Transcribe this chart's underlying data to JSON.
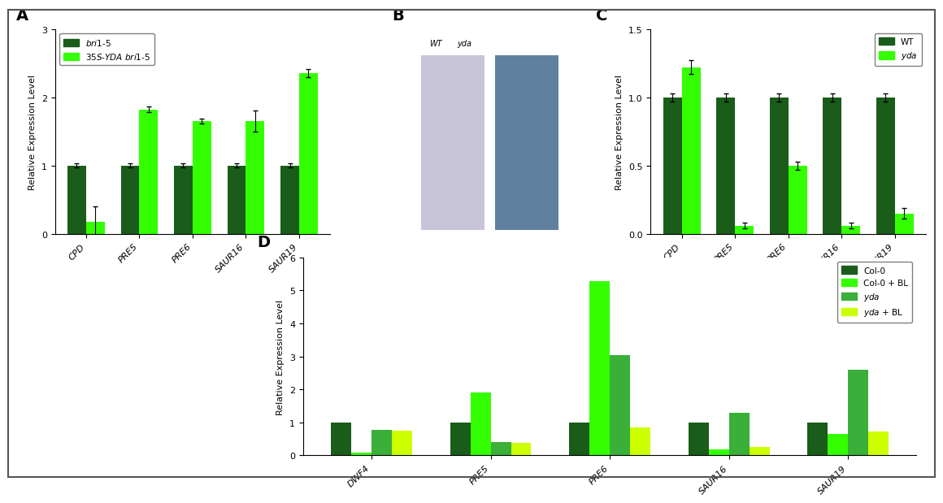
{
  "panelA": {
    "categories": [
      "CPD",
      "PRE5",
      "PRE6",
      "SAUR16",
      "SAUR19"
    ],
    "bri1_5": [
      1.0,
      1.0,
      1.0,
      1.0,
      1.0
    ],
    "bri1_5_err": [
      0.03,
      0.03,
      0.03,
      0.03,
      0.03
    ],
    "s35_yda": [
      0.18,
      1.82,
      1.65,
      1.65,
      2.35
    ],
    "s35_yda_err": [
      0.22,
      0.04,
      0.04,
      0.15,
      0.06
    ],
    "ylim": [
      0,
      3.0
    ],
    "yticks": [
      0,
      1.0,
      2.0,
      3.0
    ],
    "ylabel": "Relative Expression Level",
    "color_dark": "#1a5c1a",
    "color_bright": "#33ff00"
  },
  "panelC": {
    "categories": [
      "CPD",
      "PRE5",
      "PRE6",
      "SAUR16",
      "SAUR19"
    ],
    "wt": [
      1.0,
      1.0,
      1.0,
      1.0,
      1.0
    ],
    "wt_err": [
      0.03,
      0.03,
      0.03,
      0.03,
      0.03
    ],
    "yda": [
      1.22,
      0.06,
      0.5,
      0.06,
      0.15
    ],
    "yda_err": [
      0.05,
      0.02,
      0.03,
      0.02,
      0.04
    ],
    "ylim": [
      0,
      1.5
    ],
    "yticks": [
      0,
      0.5,
      1.0,
      1.5
    ],
    "ylabel": "Relative Expression Level",
    "color_dark": "#1a5c1a",
    "color_bright": "#33ff00"
  },
  "panelD": {
    "categories": [
      "DWF4",
      "PRE5",
      "PRE6",
      "SAUR16",
      "SAUR19"
    ],
    "col0": [
      1.0,
      1.0,
      1.0,
      1.0,
      1.0
    ],
    "col0_bl": [
      0.08,
      1.92,
      5.28,
      0.18,
      0.65
    ],
    "yda": [
      0.78,
      0.4,
      3.05,
      1.3,
      2.6
    ],
    "yda_bl": [
      0.75,
      0.38,
      0.85,
      0.25,
      0.72
    ],
    "ylim": [
      0,
      6
    ],
    "yticks": [
      0,
      1,
      2,
      3,
      4,
      5,
      6
    ],
    "ylabel": "Relative Expression Level",
    "color_col0": "#1a5c1a",
    "color_col0_bl": "#33ff00",
    "color_yda": "#3aaf3a",
    "color_yda_bl": "#ccff00"
  },
  "panel_bg": "#ffffff",
  "fig_bg": "#ffffff"
}
